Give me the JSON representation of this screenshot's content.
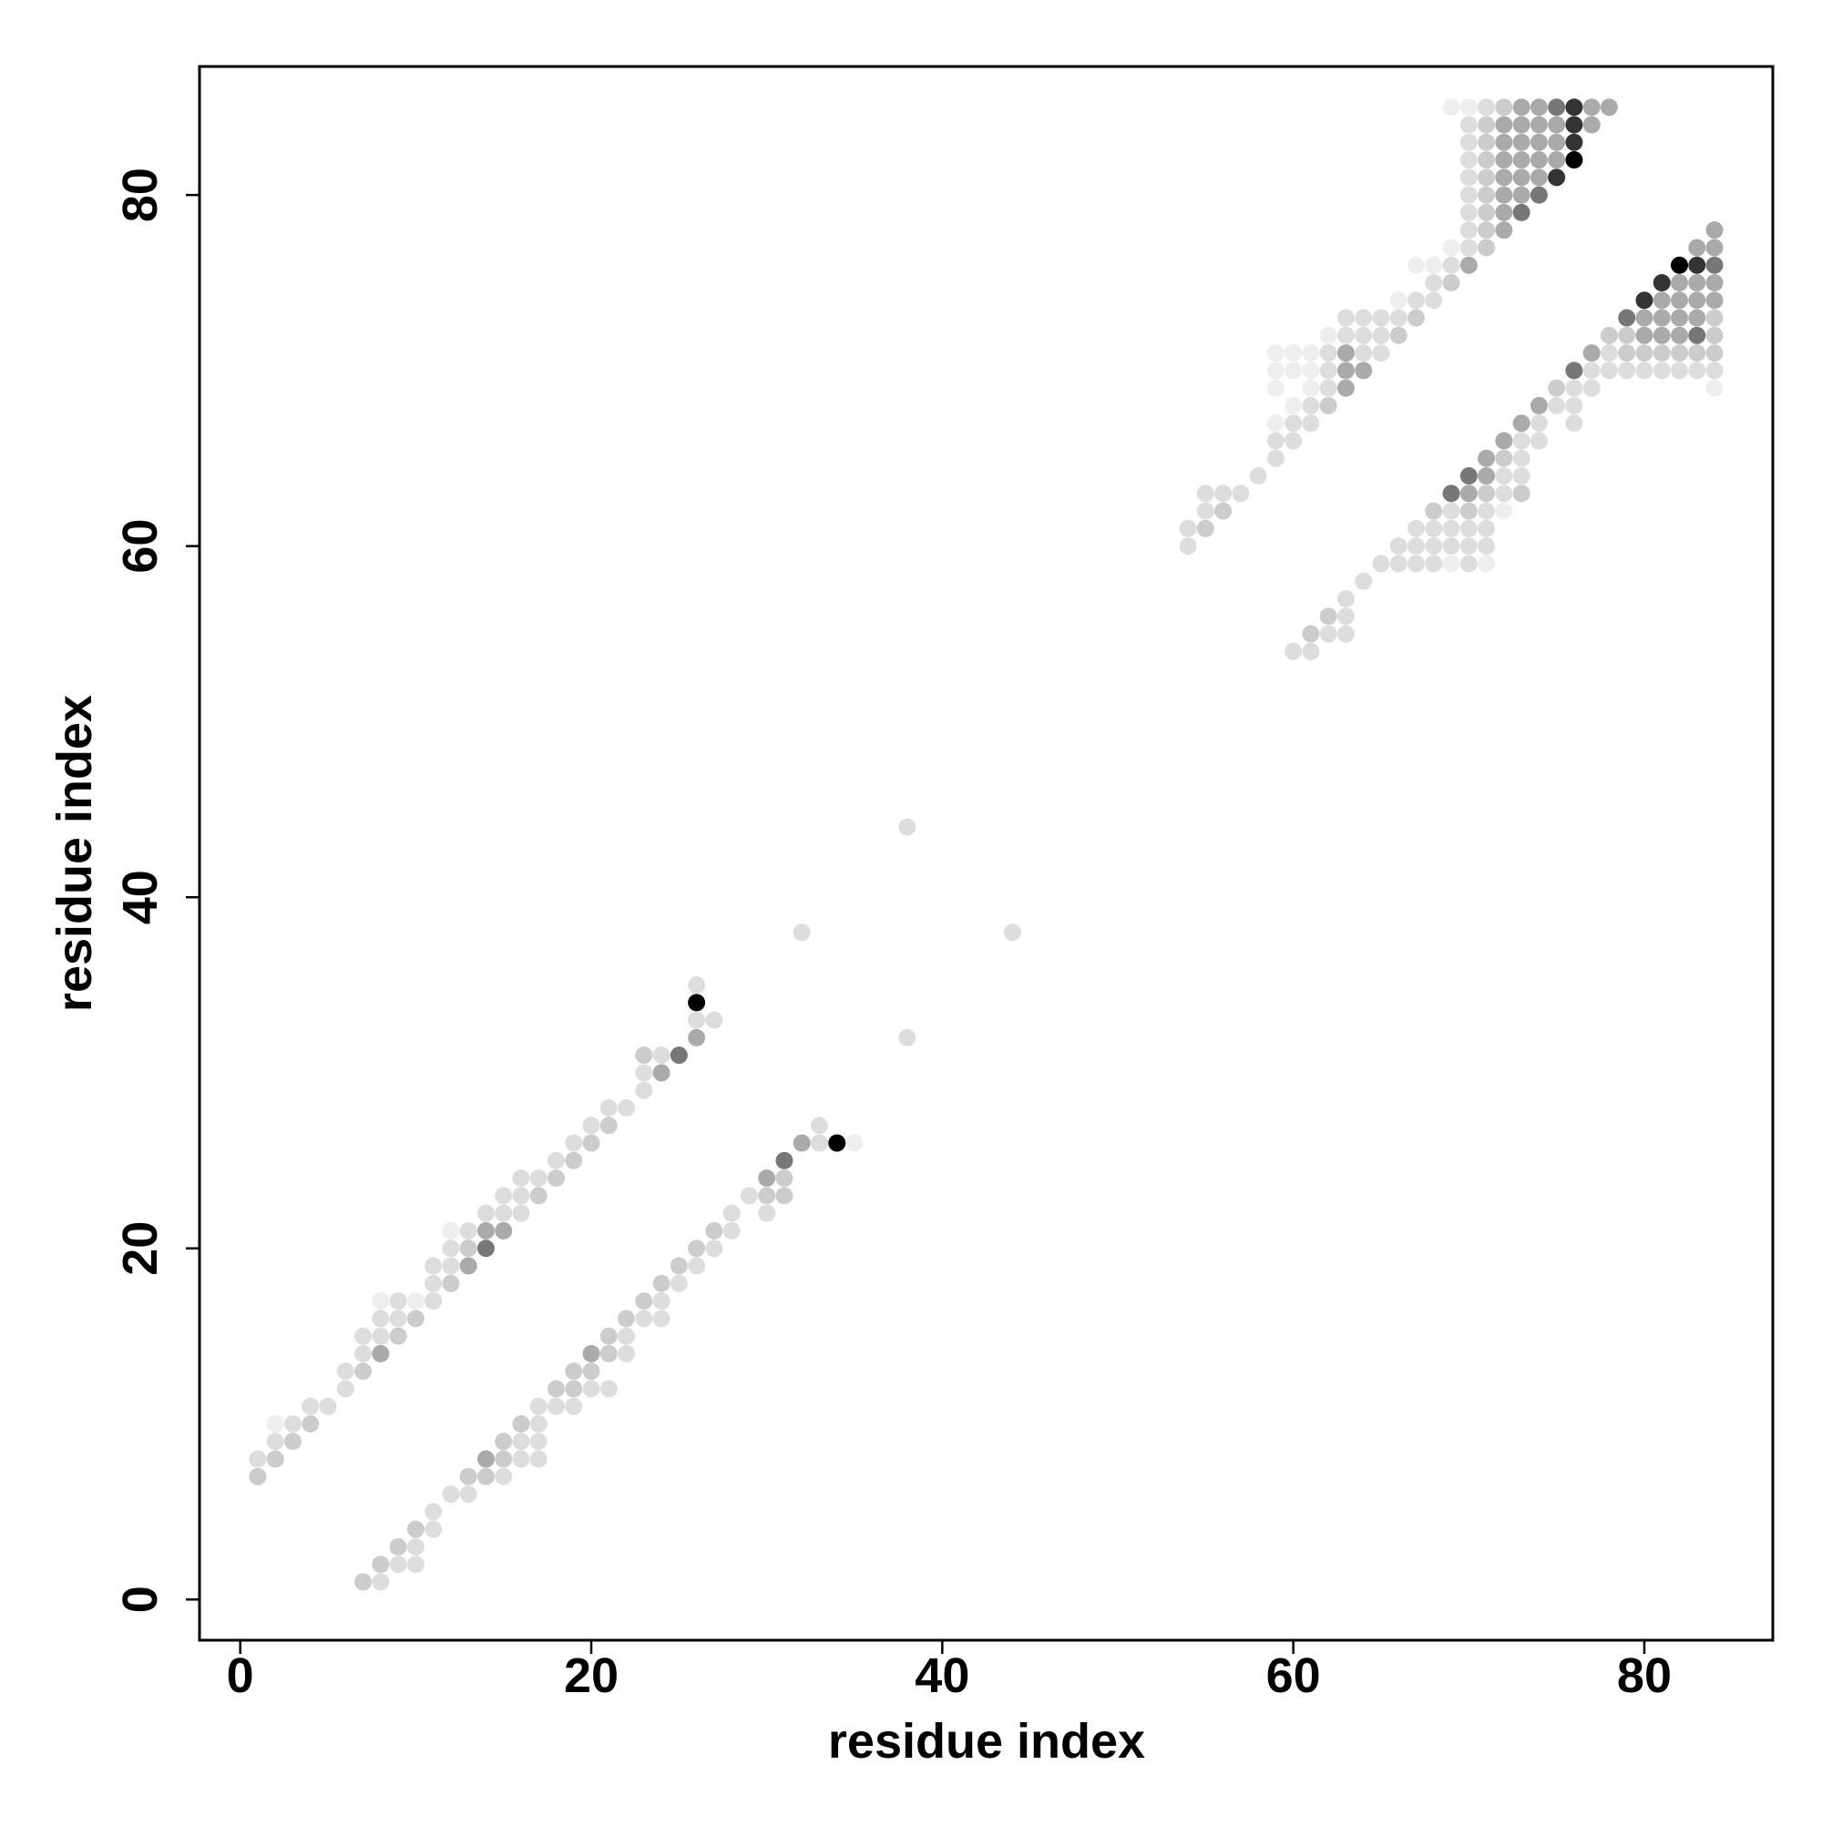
{
  "chart_data": {
    "type": "scatter",
    "xlabel": "residue index",
    "ylabel": "residue index",
    "xlim": [
      -2.32,
      87.32
    ],
    "ylim": [
      -2.32,
      87.32
    ],
    "xticks": [
      0,
      20,
      40,
      60,
      80
    ],
    "yticks": [
      0,
      20,
      40,
      60,
      80
    ],
    "x": [
      1,
      1,
      2,
      2,
      2,
      3,
      3,
      4,
      4,
      5,
      6,
      6,
      7,
      7,
      7,
      8,
      8,
      8,
      8,
      9,
      9,
      9,
      10,
      10,
      11,
      11,
      11,
      12,
      12,
      12,
      12,
      13,
      13,
      13,
      14,
      14,
      14,
      15,
      15,
      15,
      16,
      16,
      16,
      17,
      17,
      18,
      18,
      19,
      19,
      20,
      20,
      21,
      21,
      22,
      23,
      23,
      23,
      24,
      24,
      25,
      26,
      26,
      26,
      26,
      27,
      7,
      8,
      8,
      9,
      9,
      10,
      10,
      10,
      11,
      11,
      12,
      13,
      13,
      14,
      14,
      15,
      15,
      15,
      16,
      16,
      16,
      17,
      17,
      17,
      17,
      18,
      18,
      19,
      19,
      19,
      20,
      20,
      20,
      21,
      21,
      21,
      22,
      22,
      22,
      23,
      23,
      24,
      24,
      24,
      25,
      25,
      26,
      26,
      27,
      27,
      28,
      28,
      29,
      30,
      30,
      30,
      31,
      31,
      31,
      32,
      33,
      33,
      34,
      35,
      32,
      38,
      44,
      38,
      54,
      54,
      55,
      55,
      55,
      56,
      56,
      57,
      58,
      59,
      59,
      59,
      59,
      59,
      59,
      60,
      60,
      60,
      60,
      60,
      61,
      61,
      61,
      61,
      61,
      62,
      62,
      62,
      62,
      62,
      63,
      63,
      63,
      63,
      63,
      64,
      64,
      64,
      64,
      65,
      65,
      65,
      66,
      66,
      66,
      67,
      67,
      67,
      68,
      68,
      68,
      69,
      69,
      69,
      69,
      70,
      70,
      70,
      70,
      70,
      70,
      70,
      70,
      70,
      70,
      71,
      71,
      71,
      71,
      71,
      71,
      71,
      71,
      71,
      72,
      72,
      72,
      72,
      72,
      72,
      72,
      72,
      73,
      73,
      73,
      73,
      73,
      73,
      73,
      74,
      74,
      74,
      74,
      74,
      74,
      75,
      75,
      75,
      75,
      75,
      76,
      76,
      76,
      76,
      77,
      77,
      78,
      60,
      61,
      61,
      62,
      62,
      63,
      63,
      63,
      64,
      65,
      66,
      66,
      67,
      67,
      67,
      68,
      68,
      68,
      68,
      69,
      69,
      69,
      69,
      69,
      70,
      70,
      70,
      70,
      70,
      70,
      71,
      71,
      71,
      71,
      71,
      71,
      71,
      72,
      72,
      72,
      72,
      72,
      73,
      73,
      73,
      73,
      73,
      74,
      74,
      74,
      75,
      75,
      76,
      76,
      76,
      76,
      77,
      77,
      77,
      78,
      78,
      78,
      79,
      79,
      79,
      79,
      80,
      80,
      80,
      80,
      80,
      81,
      81,
      81,
      81,
      81,
      81,
      82,
      82,
      82,
      82,
      82,
      82,
      82,
      83,
      83,
      83,
      83,
      83,
      83,
      83,
      83,
      84,
      84,
      84,
      84,
      84,
      84,
      84,
      84,
      84,
      84
    ],
    "y": [
      7,
      8,
      8,
      9,
      10,
      9,
      10,
      10,
      11,
      11,
      12,
      13,
      13,
      14,
      15,
      14,
      15,
      16,
      17,
      15,
      16,
      17,
      16,
      17,
      17,
      18,
      19,
      18,
      19,
      20,
      21,
      19,
      20,
      21,
      20,
      21,
      22,
      21,
      22,
      23,
      22,
      23,
      24,
      23,
      24,
      24,
      25,
      25,
      26,
      26,
      27,
      27,
      28,
      28,
      29,
      30,
      31,
      30,
      31,
      31,
      32,
      33,
      34,
      35,
      33,
      1,
      1,
      2,
      2,
      3,
      2,
      3,
      4,
      4,
      5,
      6,
      6,
      7,
      7,
      8,
      7,
      8,
      9,
      8,
      9,
      10,
      8,
      9,
      10,
      11,
      11,
      12,
      11,
      12,
      13,
      12,
      13,
      14,
      12,
      14,
      15,
      14,
      15,
      16,
      16,
      17,
      16,
      17,
      18,
      18,
      19,
      19,
      20,
      20,
      21,
      21,
      22,
      23,
      22,
      23,
      24,
      23,
      24,
      25,
      26,
      26,
      27,
      26,
      26,
      38,
      44,
      38,
      32,
      60,
      61,
      61,
      62,
      63,
      62,
      63,
      63,
      64,
      65,
      66,
      67,
      69,
      70,
      71,
      66,
      67,
      68,
      70,
      71,
      67,
      68,
      69,
      70,
      71,
      68,
      69,
      70,
      71,
      72,
      69,
      70,
      71,
      72,
      73,
      70,
      71,
      72,
      73,
      71,
      72,
      73,
      72,
      73,
      74,
      73,
      74,
      76,
      74,
      75,
      76,
      75,
      76,
      77,
      85,
      76,
      77,
      78,
      79,
      80,
      81,
      82,
      83,
      84,
      85,
      77,
      78,
      79,
      80,
      81,
      82,
      83,
      84,
      85,
      78,
      79,
      80,
      81,
      82,
      83,
      84,
      85,
      79,
      80,
      81,
      82,
      83,
      84,
      85,
      80,
      81,
      82,
      83,
      84,
      85,
      81,
      82,
      83,
      84,
      85,
      82,
      83,
      84,
      85,
      84,
      85,
      85,
      54,
      54,
      55,
      55,
      56,
      55,
      56,
      57,
      58,
      59,
      59,
      60,
      59,
      60,
      61,
      59,
      60,
      61,
      62,
      59,
      60,
      61,
      62,
      63,
      59,
      60,
      61,
      62,
      63,
      64,
      59,
      60,
      61,
      62,
      63,
      64,
      65,
      62,
      63,
      64,
      65,
      66,
      63,
      64,
      65,
      66,
      67,
      66,
      67,
      68,
      68,
      69,
      67,
      68,
      69,
      70,
      69,
      70,
      71,
      70,
      71,
      72,
      70,
      71,
      72,
      73,
      70,
      71,
      72,
      73,
      74,
      70,
      71,
      72,
      73,
      74,
      75,
      70,
      71,
      72,
      73,
      74,
      75,
      76,
      70,
      71,
      72,
      73,
      74,
      75,
      76,
      77,
      69,
      70,
      71,
      72,
      73,
      74,
      75,
      76,
      77,
      78
    ],
    "colors": [
      "#ccc",
      "#ddd",
      "#ccc",
      "#ddd",
      "#eee",
      "#ccc",
      "#ddd",
      "#ccc",
      "#ddd",
      "#ddd",
      "#ddd",
      "#ddd",
      "#ccc",
      "#ddd",
      "#ddd",
      "#aaa",
      "#ddd",
      "#ddd",
      "#eee",
      "#ccc",
      "#ddd",
      "#ddd",
      "#ccc",
      "#eee",
      "#ddd",
      "#ddd",
      "#ddd",
      "#ccc",
      "#ddd",
      "#ddd",
      "#eee",
      "#aaa",
      "#ccc",
      "#ddd",
      "#777",
      "#aaa",
      "#ddd",
      "#aaa",
      "#ddd",
      "#ddd",
      "#ddd",
      "#ddd",
      "#ddd",
      "#ccc",
      "#ddd",
      "#ccc",
      "#ddd",
      "#ccc",
      "#ddd",
      "#ccc",
      "#ddd",
      "#ccc",
      "#ddd",
      "#ddd",
      "#ddd",
      "#ddd",
      "#ccc",
      "#aaa",
      "#ddd",
      "#777",
      "#aaa",
      "#ddd",
      "#000",
      "#ddd",
      "#ddd",
      "#ccc",
      "#ddd",
      "#ccc",
      "#ddd",
      "#ccc",
      "#ddd",
      "#ddd",
      "#ccc",
      "#ddd",
      "#ddd",
      "#ddd",
      "#ddd",
      "#ccc",
      "#ccc",
      "#aaa",
      "#ddd",
      "#ccc",
      "#ccc",
      "#ddd",
      "#ddd",
      "#ccc",
      "#ddd",
      "#ddd",
      "#ddd",
      "#ddd",
      "#ddd",
      "#ccc",
      "#ddd",
      "#ccc",
      "#ccc",
      "#ddd",
      "#ccc",
      "#aaa",
      "#ddd",
      "#ccc",
      "#ccc",
      "#ddd",
      "#ddd",
      "#ccc",
      "#ddd",
      "#ccc",
      "#ddd",
      "#ddd",
      "#ccc",
      "#ddd",
      "#ccc",
      "#ddd",
      "#ccc",
      "#ddd",
      "#ccc",
      "#ddd",
      "#ddd",
      "#ddd",
      "#ddd",
      "#ccc",
      "#aaa",
      "#ccc",
      "#ccc",
      "#777",
      "#aaa",
      "#ddd",
      "#ddd",
      "#000",
      "#eee",
      "#ddd",
      "#ddd",
      "#ddd",
      "#ddd",
      "#ddd",
      "#ddd",
      "#ccc",
      "#ddd",
      "#ddd",
      "#ccc",
      "#ddd",
      "#ddd",
      "#ddd",
      "#ddd",
      "#ddd",
      "#eee",
      "#eee",
      "#eee",
      "#eee",
      "#ddd",
      "#ddd",
      "#eee",
      "#eee",
      "#eee",
      "#ddd",
      "#ddd",
      "#eee",
      "#eee",
      "#eee",
      "#ccc",
      "#ddd",
      "#ddd",
      "#ddd",
      "#eee",
      "#aaa",
      "#aaa",
      "#aaa",
      "#ddd",
      "#ddd",
      "#aaa",
      "#ddd",
      "#ddd",
      "#ddd",
      "#ddd",
      "#ddd",
      "#ddd",
      "#ccc",
      "#ddd",
      "#eee",
      "#ccc",
      "#ddd",
      "#eee",
      "#ddd",
      "#ddd",
      "#eee",
      "#ccc",
      "#ddd",
      "#eee",
      "#eee",
      "#aaa",
      "#ddd",
      "#ddd",
      "#ddd",
      "#ddd",
      "#ddd",
      "#ddd",
      "#ddd",
      "#ddd",
      "#eee",
      "#ccc",
      "#ccc",
      "#ccc",
      "#ccc",
      "#ccc",
      "#ccc",
      "#ccc",
      "#ccc",
      "#ddd",
      "#aaa",
      "#aaa",
      "#aaa",
      "#aaa",
      "#aaa",
      "#aaa",
      "#aaa",
      "#ccc",
      "#777",
      "#aaa",
      "#aaa",
      "#aaa",
      "#aaa",
      "#aaa",
      "#aaa",
      "#777",
      "#aaa",
      "#aaa",
      "#aaa",
      "#aaa",
      "#aaa",
      "#333",
      "#aaa",
      "#aaa",
      "#aaa",
      "#777",
      "#000",
      "#333",
      "#333",
      "#333",
      "#aaa",
      "#aaa",
      "#aaa",
      "#ddd",
      "#ddd",
      "#ccc",
      "#ddd",
      "#ccc",
      "#ddd",
      "#ddd",
      "#ddd",
      "#ddd",
      "#ddd",
      "#ddd",
      "#ddd",
      "#ddd",
      "#ddd",
      "#ddd",
      "#ddd",
      "#ddd",
      "#ddd",
      "#ccc",
      "#eee",
      "#ddd",
      "#ddd",
      "#ddd",
      "#777",
      "#ddd",
      "#ddd",
      "#ddd",
      "#ccc",
      "#aaa",
      "#777",
      "#eee",
      "#ddd",
      "#ddd",
      "#ddd",
      "#ccc",
      "#aaa",
      "#aaa",
      "#eee",
      "#ddd",
      "#ddd",
      "#ccc",
      "#aaa",
      "#ccc",
      "#ddd",
      "#ddd",
      "#ddd",
      "#aaa",
      "#ddd",
      "#ddd",
      "#aaa",
      "#ddd",
      "#ccc",
      "#ddd",
      "#ddd",
      "#ddd",
      "#777",
      "#ddd",
      "#ddd",
      "#aaa",
      "#ddd",
      "#ddd",
      "#ccc",
      "#ddd",
      "#ccc",
      "#ccc",
      "#777",
      "#ddd",
      "#ccc",
      "#aaa",
      "#aaa",
      "#333",
      "#ddd",
      "#ccc",
      "#aaa",
      "#aaa",
      "#aaa",
      "#333",
      "#ddd",
      "#ccc",
      "#aaa",
      "#aaa",
      "#aaa",
      "#aaa",
      "#000",
      "#ddd",
      "#ccc",
      "#777",
      "#aaa",
      "#aaa",
      "#aaa",
      "#333",
      "#aaa",
      "#eee",
      "#ddd",
      "#ccc",
      "#ccc",
      "#ccc",
      "#aaa",
      "#aaa",
      "#777",
      "#aaa",
      "#aaa"
    ]
  }
}
